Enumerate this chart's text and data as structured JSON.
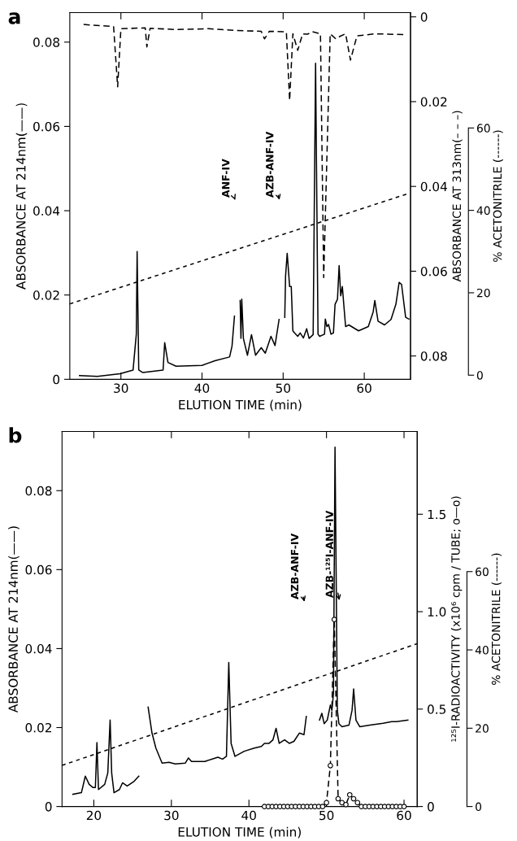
{
  "chart_data": [
    {
      "type": "line",
      "xlabel": "ELUTION TIME (min)",
      "ylabel": "ABSORBANCE AT 214nm(——)",
      "y2label": "ABSORBANCE AT 313nm(– – –)",
      "y3label": "% ACETONITRILE (------)",
      "xlim": [
        23.7,
        65.7
      ],
      "xticks": [
        30,
        40,
        50,
        60
      ],
      "ylim": [
        0,
        0.087
      ],
      "yticks": [
        0,
        0.02,
        0.04,
        0.06,
        0.08
      ],
      "y2lim": [
        0.0855,
        -0.001
      ],
      "y2ticks": [
        0,
        0.02,
        0.04,
        0.06,
        0.08
      ],
      "y3lim": [
        -1,
        88
      ],
      "y3ticks": [
        0,
        20,
        40,
        60
      ],
      "grid": false,
      "legend": false,
      "series": [
        {
          "color": "#000000",
          "line_style": "solid",
          "marker": "none",
          "x": [
            24.9,
            27.1,
            29.9,
            31.5,
            31.9,
            32.0,
            32.2,
            32.7,
            35.2,
            35.4,
            35.8,
            36.8,
            40.0,
            41.6,
            43.4,
            43.7,
            44.0,
            44.3,
            44.6,
            44.7,
            44.8,
            44.9,
            45.1,
            45.6,
            46.1,
            46.6,
            47.3,
            47.8,
            48.5,
            49.0,
            49.5,
            49.8,
            50.1,
            50.2,
            50.3,
            50.5,
            50.8,
            51.0,
            51.2,
            51.4,
            51.8,
            52.1,
            52.5,
            52.9,
            53.2,
            53.7,
            54.0,
            54.3,
            54.5,
            55.1,
            55.2,
            55.4,
            55.6,
            55.9,
            56.2,
            56.4,
            56.7,
            56.9,
            57.1,
            57.3,
            57.5,
            57.7,
            58.1,
            59.3,
            60.5,
            61.1,
            61.3,
            61.7,
            62.5,
            63.3,
            63.9,
            64.3,
            64.6,
            65.1,
            65.5
          ],
          "values": [
            0.0009,
            0.0007,
            0.0013,
            0.0022,
            0.0107,
            0.0303,
            0.0022,
            0.0016,
            0.0022,
            0.0087,
            0.004,
            0.0031,
            0.0033,
            0.0044,
            0.0053,
            0.0079,
            0.015,
            null,
            null,
            0.0187,
            0.0097,
            0.019,
            0.0097,
            0.0057,
            0.0106,
            0.0057,
            0.0075,
            0.0062,
            0.0102,
            0.008,
            0.0142,
            null,
            null,
            0.0147,
            0.0245,
            0.0299,
            0.022,
            0.022,
            0.0115,
            0.011,
            0.0102,
            0.011,
            0.0098,
            0.012,
            0.0097,
            0.0106,
            0.075,
            0.0107,
            0.0102,
            0.0107,
            0.0143,
            0.0125,
            0.013,
            0.0107,
            0.011,
            0.0178,
            0.019,
            0.027,
            0.0198,
            0.022,
            0.0172,
            0.0125,
            0.0129,
            0.0115,
            0.0125,
            0.016,
            0.0187,
            0.0138,
            0.0129,
            0.0142,
            0.0178,
            0.023,
            0.0225,
            0.0147,
            0.0143
          ]
        },
        {
          "color": "#000000",
          "line_style": "dashed",
          "marker": "none",
          "axis": "y2",
          "x": [
            25.4,
            29.1,
            29.6,
            30.0,
            33.0,
            33.2,
            33.6,
            36.8,
            40.8,
            44.0,
            47.3,
            47.7,
            48.3,
            50.0,
            50.4,
            50.8,
            51.2,
            51.8,
            52.4,
            53.0,
            53.6,
            54.6,
            55.0,
            55.8,
            56.5,
            57.1,
            57.7,
            58.3,
            59.1,
            61.3,
            65.1
          ],
          "values": [
            0.0018,
            0.0023,
            0.0165,
            0.0028,
            0.0026,
            0.0071,
            0.0027,
            0.003,
            0.0028,
            0.0032,
            0.0034,
            0.0052,
            0.0034,
            0.0035,
            0.0036,
            0.0197,
            0.004,
            0.0079,
            0.004,
            0.0041,
            0.0035,
            0.004,
            0.0615,
            0.004,
            0.0052,
            0.0045,
            0.004,
            0.0102,
            0.0045,
            0.004,
            0.0042
          ]
        },
        {
          "color": "#000000",
          "line_style": "dotted",
          "marker": "none",
          "axis": "y3",
          "x": [
            23.7,
            65.3
          ],
          "values": [
            17.3,
            44
          ]
        }
      ],
      "annotations": [
        "a",
        "ANF-IV",
        "AZB-ANF-IV"
      ]
    },
    {
      "type": "line",
      "xlabel": "ELUTION TIME (min)",
      "ylabel": "ABSORBANCE AT 214nm(——)",
      "y2label": "¹²⁵I-RADIOACTIVITY (x10⁶ cpm / TUBE; o—o)",
      "y3label": "% ACETONITRILE (------)",
      "xlim": [
        15.9,
        61.7
      ],
      "xticks": [
        20,
        30,
        40,
        50,
        60
      ],
      "ylim": [
        0,
        0.095
      ],
      "yticks": [
        0,
        0.02,
        0.04,
        0.06,
        0.08
      ],
      "y2lim": [
        0,
        1.925
      ],
      "y2ticks": [
        0,
        0.5,
        {
          "value": 1,
          "label": "1.0"
        },
        1.5
      ],
      "y3lim": [
        0,
        95.8
      ],
      "y3ticks": [
        0,
        20,
        40,
        60
      ],
      "grid": false,
      "legend": false,
      "series": [
        {
          "color": "#000000",
          "line_style": "solid",
          "marker": "none",
          "x": [
            17.3,
            18.4,
            18.9,
            19.4,
            19.9,
            20.2,
            20.4,
            20.6,
            21.4,
            21.8,
            22.1,
            22.3,
            22.6,
            23.3,
            23.7,
            24.3,
            25.2,
            25.8,
            26.4,
            26.9,
            27.0,
            27.5,
            28.0,
            28.8,
            29.7,
            30.5,
            31.8,
            32.2,
            32.6,
            34.3,
            36.0,
            36.6,
            37.1,
            37.4,
            37.7,
            38.2,
            39.4,
            40.7,
            41.6,
            42.0,
            42.6,
            43.1,
            43.5,
            43.9,
            44.6,
            45.2,
            45.8,
            46.5,
            47.1,
            47.4,
            47.6,
            49.0,
            49.1,
            49.4,
            49.7,
            50.1,
            50.5,
            50.7,
            50.9,
            51.1,
            51.4,
            51.6,
            52.0,
            52.9,
            53.3,
            53.5,
            53.8,
            54.3,
            55.6,
            57.3,
            58.4,
            59.0,
            60.5
          ],
          "values": [
            0.0031,
            0.0035,
            0.0077,
            0.0056,
            0.0048,
            0.0048,
            0.0162,
            0.0043,
            0.0056,
            0.0085,
            0.0219,
            0.0085,
            0.0035,
            0.0043,
            0.006,
            0.0052,
            0.0064,
            0.0077,
            null,
            null,
            0.0252,
            0.0186,
            0.0148,
            0.011,
            0.0112,
            0.0108,
            0.011,
            0.0123,
            0.0114,
            0.0114,
            0.0125,
            0.012,
            0.0127,
            0.0365,
            0.016,
            0.0127,
            0.014,
            0.0148,
            0.0152,
            0.016,
            0.016,
            0.0169,
            0.0198,
            0.016,
            0.0169,
            0.016,
            0.0165,
            0.0186,
            0.0182,
            0.0228,
            null,
            null,
            0.0219,
            0.0236,
            0.021,
            0.0219,
            0.0257,
            0.0244,
            0.0286,
            0.091,
            0.0244,
            0.021,
            0.0202,
            0.0206,
            0.0244,
            0.0298,
            0.0219,
            0.0202,
            0.0206,
            0.0211,
            0.0215,
            0.0215,
            0.0219
          ]
        },
        {
          "color": "#000000",
          "line_style": "dashed",
          "marker": "circle",
          "axis": "y2",
          "x": [
            42,
            42.5,
            43,
            43.5,
            44,
            44.5,
            45,
            45.5,
            46,
            46.5,
            47,
            47.5,
            48,
            48.5,
            49,
            49.5,
            50,
            50.5,
            51,
            51.5,
            52,
            52.5,
            53,
            53.5,
            54,
            54.5,
            55,
            55.5,
            56,
            56.5,
            57,
            57.5,
            58,
            58.5,
            59,
            59.5,
            60
          ],
          "values": [
            0,
            0,
            0,
            0,
            0,
            0,
            0,
            0,
            0,
            0,
            0,
            0,
            0,
            0,
            0,
            0,
            0.02,
            0.21,
            0.96,
            0.04,
            0.02,
            0.01,
            0.06,
            0.04,
            0.02,
            0,
            0,
            0,
            0,
            0,
            0,
            0,
            0,
            0,
            0,
            0,
            0
          ]
        },
        {
          "color": "#000000",
          "line_style": "dotted",
          "marker": "none",
          "axis": "y3",
          "x": [
            15.9,
            61.7
          ],
          "values": [
            10.5,
            41.6
          ]
        }
      ],
      "annotations": [
        "b",
        "AZB-ANF-IV",
        "AZB-¹²⁵I-ANF-IV"
      ]
    }
  ]
}
